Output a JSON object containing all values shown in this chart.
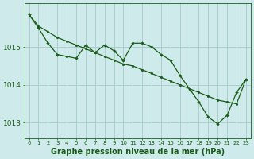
{
  "title": "Graphe pression niveau de la mer (hPa)",
  "bg_color": "#ceeaea",
  "grid_color": "#aacece",
  "line_color": "#1a5c1a",
  "x_labels": [
    "0",
    "1",
    "2",
    "3",
    "4",
    "5",
    "6",
    "7",
    "8",
    "9",
    "10",
    "11",
    "12",
    "13",
    "14",
    "15",
    "16",
    "17",
    "18",
    "19",
    "20",
    "21",
    "22",
    "23"
  ],
  "series1_x": [
    0,
    1,
    2,
    3,
    4,
    5,
    6,
    7,
    8,
    9,
    10,
    11,
    12,
    13,
    14,
    15,
    16,
    17,
    18,
    19,
    20,
    21,
    22,
    23
  ],
  "series1_y": [
    1015.85,
    1015.55,
    1015.4,
    1015.25,
    1015.15,
    1015.05,
    1014.95,
    1014.85,
    1014.75,
    1014.65,
    1014.55,
    1014.5,
    1014.4,
    1014.3,
    1014.2,
    1014.1,
    1014.0,
    1013.9,
    1013.8,
    1013.7,
    1013.6,
    1013.55,
    1013.5,
    1014.15
  ],
  "series2_x": [
    0,
    1,
    2,
    3,
    4,
    5,
    6,
    7,
    8,
    9,
    10,
    11,
    12,
    13,
    14,
    15,
    16,
    17,
    18,
    19,
    20,
    21,
    22,
    23
  ],
  "series2_y": [
    1015.85,
    1015.5,
    1015.1,
    1014.8,
    1014.75,
    1014.7,
    1015.05,
    1014.85,
    1015.05,
    1014.9,
    1014.65,
    1015.1,
    1015.1,
    1015.0,
    1014.8,
    1014.65,
    1014.25,
    1013.9,
    1013.55,
    1013.15,
    1012.97,
    1013.2,
    1013.8,
    1014.15
  ],
  "ylim": [
    1012.6,
    1016.15
  ],
  "yticks": [
    1013,
    1014,
    1015
  ],
  "xlabel_fontsize": 5.0,
  "ylabel_fontsize": 6.5,
  "title_fontsize": 7.0,
  "linewidth": 0.9,
  "markersize": 2.2
}
